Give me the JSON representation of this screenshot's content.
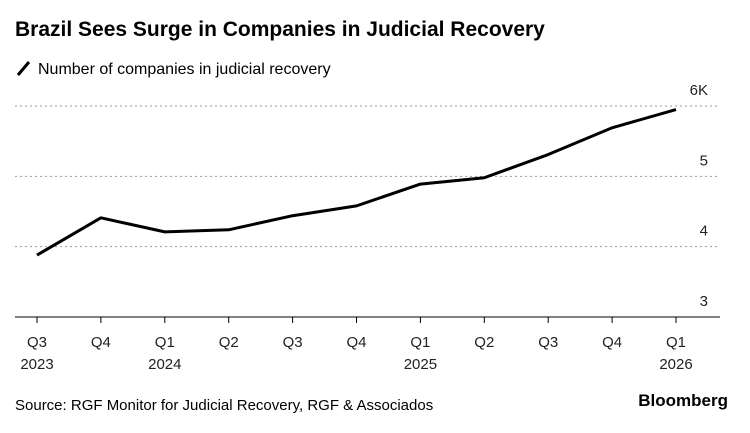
{
  "chart_data": {
    "type": "line",
    "title": "Brazil Sees Surge in Companies in Judicial Recovery",
    "x_labels": [
      {
        "quarter": "Q3",
        "year": "2023"
      },
      {
        "quarter": "Q4"
      },
      {
        "quarter": "Q1",
        "year": "2024"
      },
      {
        "quarter": "Q2"
      },
      {
        "quarter": "Q3"
      },
      {
        "quarter": "Q4"
      },
      {
        "quarter": "Q1",
        "year": "2025"
      },
      {
        "quarter": "Q2"
      },
      {
        "quarter": "Q3"
      },
      {
        "quarter": "Q4"
      },
      {
        "quarter": "Q1",
        "year": "2026"
      }
    ],
    "series": [
      {
        "name": "Number of companies in judicial recovery",
        "color": "#000000",
        "values": [
          3.88,
          4.41,
          4.21,
          4.24,
          4.44,
          4.58,
          4.89,
          4.98,
          5.31,
          5.69,
          5.95
        ]
      }
    ],
    "ylim": [
      3,
      6
    ],
    "yticks": [
      3,
      4,
      5,
      {
        "value": 6,
        "label": "6K"
      }
    ],
    "grid": true,
    "source": "Source: RGF Monitor for Judicial Recovery, RGF & Associados",
    "brand": "Bloomberg"
  }
}
